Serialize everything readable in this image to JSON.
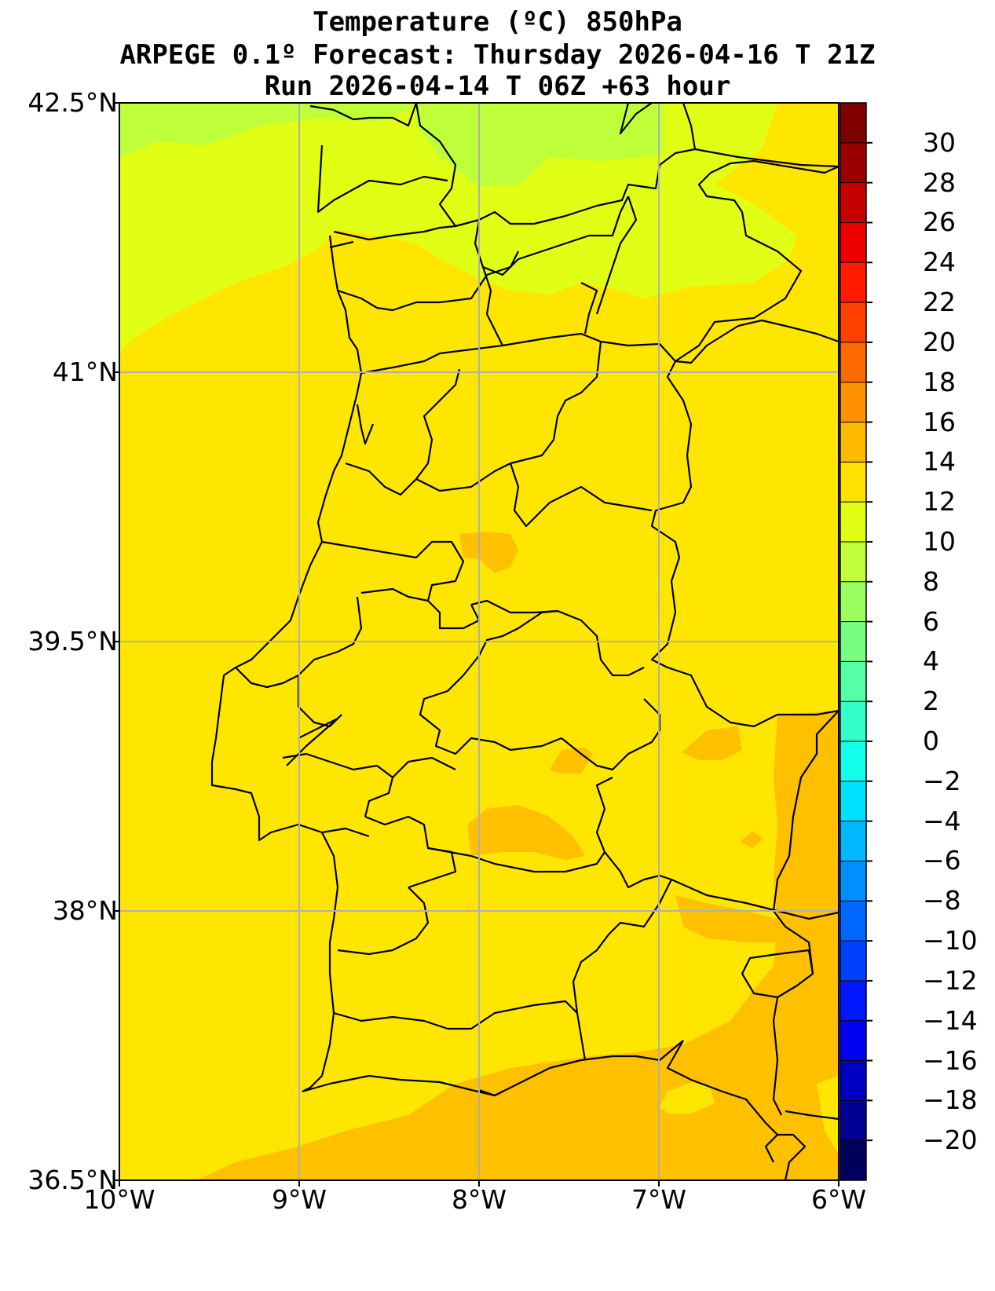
{
  "title": {
    "line1": "Temperature (ºC) 850hPa",
    "line2": "ARPEGE 0.1º Forecast: Thursday 2026-04-16 T 21Z",
    "line3": "Run 2026-04-14 T 06Z +63 hour"
  },
  "map": {
    "latitude_labels": [
      "42.5°N",
      "41°N",
      "39.5°N",
      "38°N",
      "36.5°N"
    ],
    "longitude_labels": [
      "10°W",
      "9°W",
      "8°W",
      "7°W",
      "6°W"
    ],
    "extent": {
      "lon_min": -10,
      "lon_max": -6,
      "lat_min": 36.5,
      "lat_max": 42.5
    },
    "gridlines": true,
    "dominant_field_range": "12 to 14 °C over most of Portugal; 14–16 °C in the south and southeast; 10–12 °C in the north"
  },
  "colorbar": {
    "ticks": [
      "30",
      "28",
      "26",
      "24",
      "22",
      "20",
      "18",
      "16",
      "14",
      "12",
      "10",
      "8",
      "6",
      "4",
      "2",
      "0",
      "−2",
      "−4",
      "−6",
      "−8",
      "−10",
      "−12",
      "−14",
      "−16",
      "−18",
      "−20"
    ],
    "colors": [
      "#800000",
      "#9b0000",
      "#c40000",
      "#ed0000",
      "#ff1a00",
      "#ff4000",
      "#ff6a00",
      "#ff9000",
      "#ffb900",
      "#ffe100",
      "#e1ff14",
      "#bfff3a",
      "#9aff5e",
      "#76ff82",
      "#54ffa6",
      "#32ffc9",
      "#12ffea",
      "#00e0ff",
      "#00b8ff",
      "#0090ff",
      "#0068ff",
      "#0040ff",
      "#0018ff",
      "#0000f2",
      "#0000c4",
      "#000093",
      "#00005c"
    ]
  },
  "colors": {
    "band_8_10": "#bfff3a",
    "band_10_12": "#e1ff14",
    "band_12_14": "#ffe600",
    "band_14_16": "#ffc000",
    "border": "#000000",
    "grid": "#b0b0b0"
  }
}
